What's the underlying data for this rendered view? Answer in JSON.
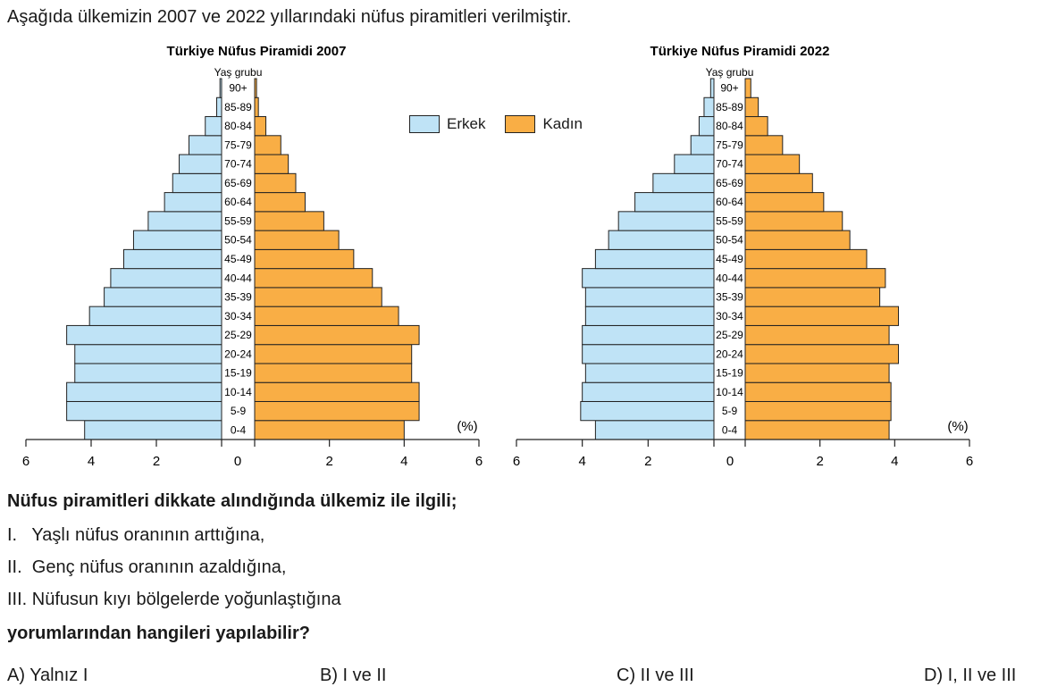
{
  "intro": "Aşağıda ülkemizin 2007 ve 2022 yıllarındaki nüfus piramitleri verilmiştir.",
  "legend": {
    "male": "Erkek",
    "female": "Kadın"
  },
  "colors": {
    "male": "#bfe3f6",
    "female": "#f9ae45",
    "stroke": "#222222"
  },
  "chart_data": [
    {
      "type": "bar",
      "title": "Türkiye Nüfus Piramidi 2007",
      "ylabel": "Yaş grubu",
      "unit": "(%)",
      "categories": [
        "0-4",
        "5-9",
        "10-14",
        "15-19",
        "20-24",
        "25-29",
        "30-34",
        "35-39",
        "40-44",
        "45-49",
        "50-54",
        "55-59",
        "60-64",
        "65-69",
        "70-74",
        "75-79",
        "80-84",
        "85-89",
        "90+"
      ],
      "series": [
        {
          "name": "Erkek",
          "values": [
            4.2,
            4.75,
            4.75,
            4.5,
            4.5,
            4.75,
            4.05,
            3.6,
            3.4,
            3.0,
            2.7,
            2.25,
            1.75,
            1.5,
            1.3,
            1.0,
            0.5,
            0.15,
            0.05
          ]
        },
        {
          "name": "Kadın",
          "values": [
            4.0,
            4.4,
            4.4,
            4.2,
            4.2,
            4.4,
            3.85,
            3.4,
            3.15,
            2.65,
            2.25,
            1.85,
            1.35,
            1.1,
            0.9,
            0.7,
            0.3,
            0.1,
            0.05
          ]
        }
      ],
      "xticks": [
        "6",
        "4",
        "2",
        "0",
        "2",
        "4",
        "6"
      ],
      "xlim": [
        -6,
        6
      ]
    },
    {
      "type": "bar",
      "title": "Türkiye Nüfus Piramidi 2022",
      "ylabel": "Yaş grubu",
      "unit": "(%)",
      "categories": [
        "0-4",
        "5-9",
        "10-14",
        "15-19",
        "20-24",
        "25-29",
        "30-34",
        "35-39",
        "40-44",
        "45-49",
        "50-54",
        "55-59",
        "60-64",
        "65-69",
        "70-74",
        "75-79",
        "80-84",
        "85-89",
        "90+"
      ],
      "series": [
        {
          "name": "Erkek",
          "values": [
            3.6,
            4.05,
            4.0,
            3.9,
            4.0,
            4.0,
            3.9,
            3.9,
            4.0,
            3.6,
            3.2,
            2.9,
            2.4,
            1.85,
            1.2,
            0.7,
            0.45,
            0.3,
            0.1
          ]
        },
        {
          "name": "Kadın",
          "values": [
            3.85,
            3.9,
            3.9,
            3.85,
            4.1,
            3.85,
            4.1,
            3.6,
            3.75,
            3.25,
            2.8,
            2.6,
            2.1,
            1.8,
            1.45,
            1.0,
            0.6,
            0.35,
            0.15
          ]
        }
      ],
      "xticks": [
        "6",
        "4",
        "2",
        "0",
        "2",
        "4",
        "6"
      ],
      "xlim": [
        -6,
        6
      ]
    }
  ],
  "question": {
    "stem": "Nüfus piramitleri dikkate alındığında ülkemiz ile ilgili;",
    "items": [
      "I.   Yaşlı nüfus oranının arttığına,",
      "II.  Genç nüfus oranının azaldığına,",
      "III. Nüfusun kıyı bölgelerde yoğunlaştığına"
    ],
    "prompt": "yorumlarından hangileri yapılabilir?"
  },
  "options": [
    "A) Yalnız I",
    "B) I ve II",
    "C) II ve III",
    "D) I, II ve III"
  ]
}
